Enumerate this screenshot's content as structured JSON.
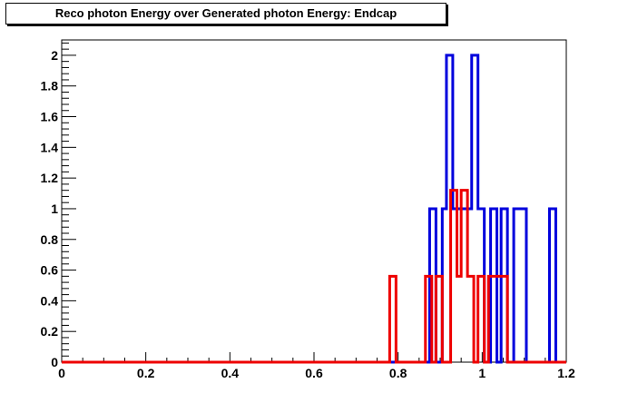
{
  "chart_data": {
    "type": "line",
    "title": "Reco photon Energy over Generated photon Energy: Endcap",
    "xlabel": "",
    "ylabel": "",
    "xlim": [
      0,
      1.2
    ],
    "ylim": [
      0,
      2.1
    ],
    "grid": false,
    "x_ticks": [
      "0",
      "0.2",
      "0.4",
      "0.6",
      "0.8",
      "1",
      "1.2"
    ],
    "y_ticks": [
      "0",
      "0.2",
      "0.4",
      "0.6",
      "0.8",
      "1",
      "1.2",
      "1.4",
      "1.6",
      "1.8",
      "2"
    ],
    "series": [
      {
        "color": "#0000dd",
        "bins": [
          {
            "x0": 0.875,
            "x1": 0.89,
            "y": 1
          },
          {
            "x0": 0.89,
            "x1": 0.905,
            "y": 0
          },
          {
            "x0": 0.905,
            "x1": 0.915,
            "y": 1
          },
          {
            "x0": 0.915,
            "x1": 0.93,
            "y": 2
          },
          {
            "x0": 0.93,
            "x1": 0.945,
            "y": 1
          },
          {
            "x0": 0.945,
            "x1": 0.96,
            "y": 1
          },
          {
            "x0": 0.96,
            "x1": 0.975,
            "y": 1
          },
          {
            "x0": 0.975,
            "x1": 0.99,
            "y": 2
          },
          {
            "x0": 0.99,
            "x1": 1.005,
            "y": 1
          },
          {
            "x0": 1.005,
            "x1": 1.02,
            "y": 0
          },
          {
            "x0": 1.02,
            "x1": 1.035,
            "y": 1
          },
          {
            "x0": 1.035,
            "x1": 1.045,
            "y": 0
          },
          {
            "x0": 1.045,
            "x1": 1.06,
            "y": 1
          },
          {
            "x0": 1.06,
            "x1": 1.075,
            "y": 0
          },
          {
            "x0": 1.075,
            "x1": 1.105,
            "y": 1
          },
          {
            "x0": 1.105,
            "x1": 1.16,
            "y": 0
          },
          {
            "x0": 1.16,
            "x1": 1.175,
            "y": 1
          }
        ]
      },
      {
        "color": "#ee0000",
        "bins": [
          {
            "x0": 0.78,
            "x1": 0.795,
            "y": 0.56
          },
          {
            "x0": 0.795,
            "x1": 0.865,
            "y": 0
          },
          {
            "x0": 0.865,
            "x1": 0.88,
            "y": 0.56
          },
          {
            "x0": 0.88,
            "x1": 0.89,
            "y": 0
          },
          {
            "x0": 0.89,
            "x1": 0.905,
            "y": 0.56
          },
          {
            "x0": 0.905,
            "x1": 0.925,
            "y": 0
          },
          {
            "x0": 0.925,
            "x1": 0.94,
            "y": 1.12
          },
          {
            "x0": 0.94,
            "x1": 0.95,
            "y": 0.56
          },
          {
            "x0": 0.95,
            "x1": 0.965,
            "y": 1.12
          },
          {
            "x0": 0.965,
            "x1": 0.98,
            "y": 0.56
          },
          {
            "x0": 0.98,
            "x1": 0.99,
            "y": 0
          },
          {
            "x0": 0.99,
            "x1": 1.005,
            "y": 0.56
          },
          {
            "x0": 1.005,
            "x1": 1.015,
            "y": 0
          },
          {
            "x0": 1.015,
            "x1": 1.06,
            "y": 0.56
          }
        ]
      }
    ]
  }
}
